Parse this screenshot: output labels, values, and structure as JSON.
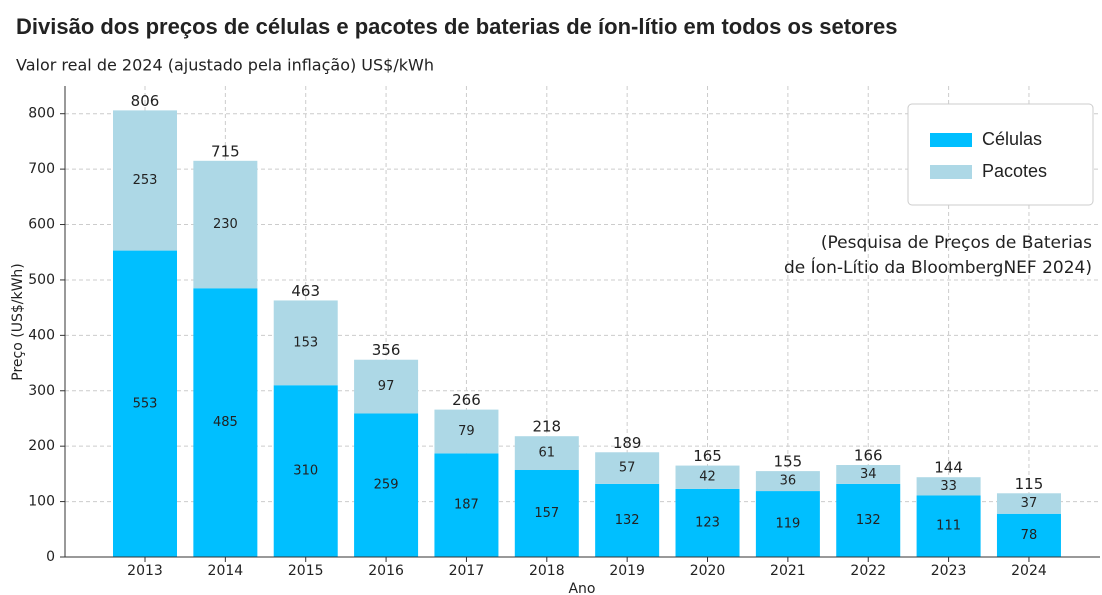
{
  "chart_data": {
    "type": "stacked_bar",
    "title": "Divisão dos preços de células e pacotes de baterias de íon-lítio em todos os setores",
    "subtitle": "Valor real de 2024 (ajustado pela inflação) US$/kWh",
    "x_label": "Ano",
    "y_label": "Preço (US$/kWh)",
    "annotation": [
      "(Pesquisa de Preços de Baterias",
      "de Íon-Lítio da BloombergNEF 2024)"
    ],
    "categories": [
      "2013",
      "2014",
      "2015",
      "2016",
      "2017",
      "2018",
      "2019",
      "2020",
      "2021",
      "2022",
      "2023",
      "2024"
    ],
    "series": [
      {
        "name": "Células",
        "color": "#00bfff",
        "values": [
          553,
          485,
          310,
          259,
          187,
          157,
          132,
          123,
          119,
          132,
          111,
          78
        ]
      },
      {
        "name": "Pacotes",
        "color": "#add8e6",
        "values": [
          253,
          230,
          153,
          97,
          79,
          61,
          57,
          42,
          36,
          34,
          33,
          37
        ]
      }
    ],
    "totals": [
      806,
      715,
      463,
      356,
      266,
      218,
      189,
      165,
      155,
      166,
      144,
      115
    ],
    "ylim": [
      0,
      850
    ],
    "yticks": [
      0,
      100,
      200,
      300,
      400,
      500,
      600,
      700,
      800
    ],
    "grid": true,
    "legend": "upper right"
  }
}
